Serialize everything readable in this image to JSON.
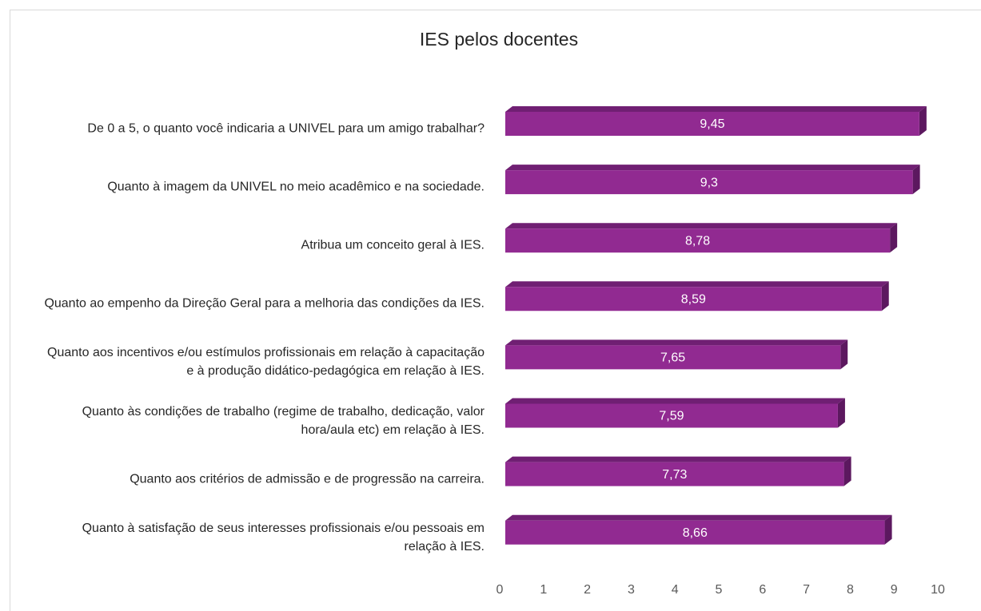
{
  "chart_data": {
    "type": "bar",
    "orientation": "horizontal",
    "title": "IES pelos docentes",
    "categories": [
      "De 0 a 5, o quanto você indicaria a UNIVEL para um amigo trabalhar?",
      "Quanto à imagem da UNIVEL no meio acadêmico e na sociedade.",
      "Atribua um conceito geral à IES.",
      "Quanto ao empenho da Direção Geral para a melhoria das condições da IES.",
      "Quanto aos incentivos e/ou estímulos profissionais em relação à capacitação e à produção didático-pedagógica em relação à IES.",
      "Quanto às condições de trabalho (regime de trabalho, dedicação, valor hora/aula etc) em relação à IES.",
      "Quanto aos critérios de admissão e de progressão na carreira.",
      "Quanto à satisfação de seus interesses profissionais e/ou pessoais em relação à IES."
    ],
    "values": [
      9.45,
      9.3,
      8.78,
      8.59,
      7.65,
      7.59,
      7.73,
      8.66
    ],
    "value_labels": [
      "9,45",
      "9,3",
      "8,78",
      "8,59",
      "7,65",
      "7,59",
      "7,73",
      "8,66"
    ],
    "color": "#912a91",
    "xlim": [
      0,
      10
    ],
    "xticks": [
      0,
      1,
      2,
      3,
      4,
      5,
      6,
      7,
      8,
      9,
      10
    ],
    "grid": false
  }
}
